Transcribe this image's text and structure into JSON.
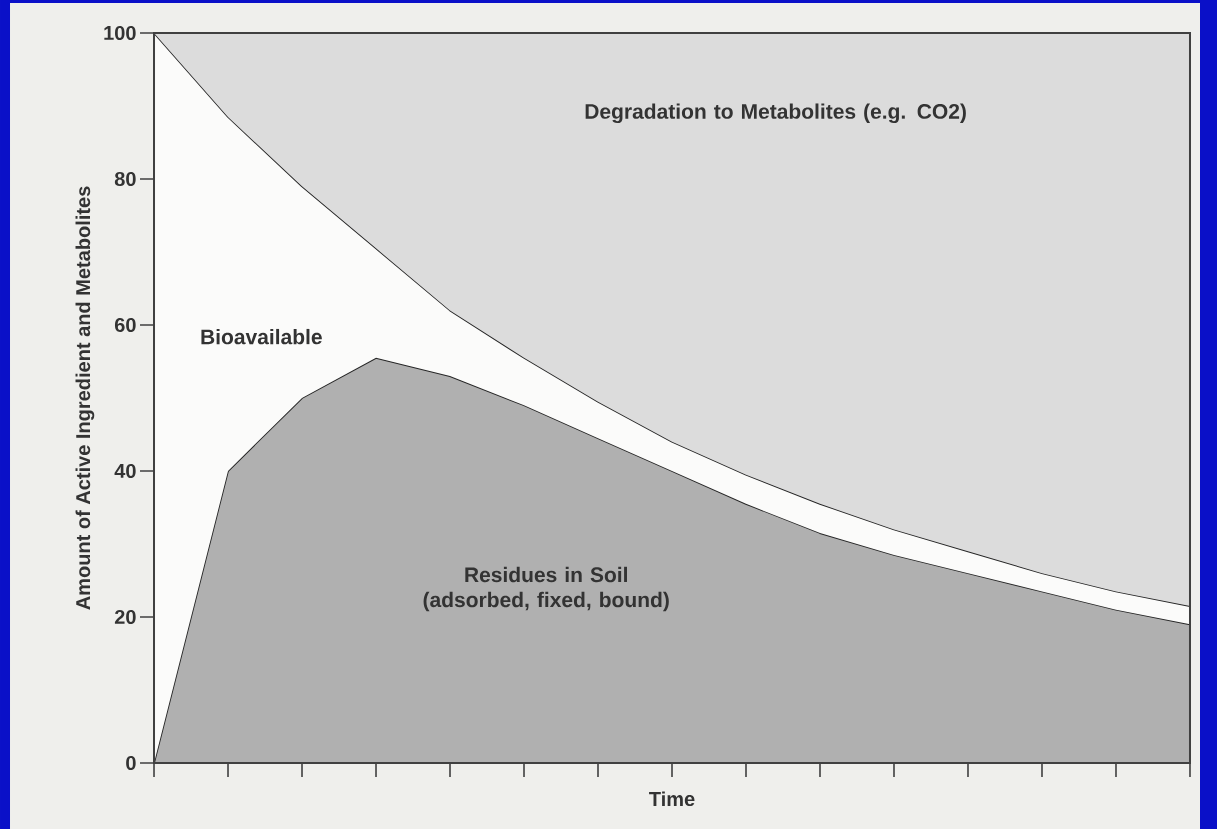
{
  "chart_data": {
    "type": "area",
    "stacked": true,
    "xlabel": "Time",
    "ylabel": "Amount of Active Ingredient and Metabolites",
    "categories": [
      null,
      null,
      null,
      null,
      null,
      null,
      null,
      null,
      null,
      null,
      null,
      null,
      null,
      null,
      null
    ],
    "ylim": [
      0,
      100
    ],
    "yticks": [
      0,
      20,
      40,
      60,
      80,
      100
    ],
    "tick_labels": "y",
    "series": [
      {
        "name": "Residues in Soil (adsorbed, fixed, bound)",
        "color": "#b0b0b0",
        "values": [
          0,
          40,
          50,
          55.5,
          53,
          49,
          44.5,
          40,
          35.5,
          31.5,
          28.5,
          26,
          23.5,
          21,
          19
        ]
      },
      {
        "name": "Bioavailable",
        "color": "#fbfbfa",
        "values": [
          100,
          48.5,
          29,
          15,
          9,
          6.5,
          5,
          4,
          4,
          4,
          3.5,
          3,
          2.5,
          2.5,
          2.5
        ]
      },
      {
        "name": "Degradation to Metabolites (e.g. CO2)",
        "color": "#dcdcdc",
        "values": [
          0,
          11.5,
          21,
          29.5,
          38,
          44.5,
          50.5,
          56,
          60.5,
          64.5,
          68,
          71,
          74,
          76.5,
          78.5
        ]
      }
    ]
  }
}
